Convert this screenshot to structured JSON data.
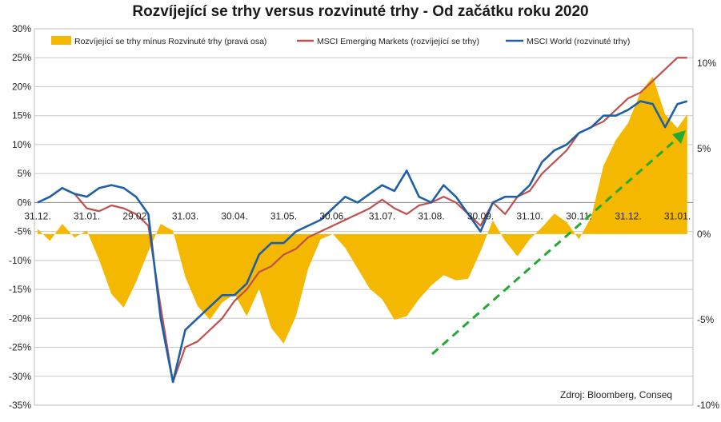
{
  "chart_data": {
    "type": "line",
    "title": "Rozvíjející se trhy versus rozvinuté trhy - Od začátku roku 2020",
    "source_note": "Zdroj: Bloomberg, Conseq",
    "xlabel": "",
    "ylabel": "",
    "x_tick_labels": [
      "31.12.",
      "31.01.",
      "29.02.",
      "31.03.",
      "30.04.",
      "31.05.",
      "30.06.",
      "31.07.",
      "31.08.",
      "30.09.",
      "31.10.",
      "30.11.",
      "31.12.",
      "31.01."
    ],
    "left_axis": {
      "ylim": [
        -35,
        30
      ],
      "tick_values": [
        30,
        25,
        20,
        15,
        10,
        5,
        0,
        -5,
        -10,
        -15,
        -20,
        -25,
        -30,
        -35
      ],
      "tick_labels": [
        "30%",
        "25%",
        "20%",
        "15%",
        "10%",
        "5%",
        "0%",
        "-5%",
        "-10%",
        "-15%",
        "-20%",
        "-25%",
        "-30%",
        "-35%"
      ]
    },
    "right_axis": {
      "ylim": [
        -10,
        12
      ],
      "tick_values": [
        10,
        5,
        0,
        -5,
        -10
      ],
      "tick_labels": [
        "10%",
        "5%",
        "0%",
        "-5%",
        "-10%"
      ]
    },
    "grid": true,
    "legend_position": "top",
    "series": [
      {
        "name": "Rozvíjející se trhy mínus Rozvinuté trhy (pravá osa)",
        "type": "area",
        "axis": "right",
        "color": "#f5b800",
        "x": [
          0,
          0.25,
          0.5,
          0.75,
          1,
          1.25,
          1.5,
          1.75,
          2,
          2.25,
          2.5,
          2.75,
          3,
          3.25,
          3.5,
          3.75,
          4,
          4.25,
          4.5,
          4.75,
          5,
          5.25,
          5.5,
          5.75,
          6,
          6.25,
          6.5,
          6.75,
          7,
          7.25,
          7.5,
          7.75,
          8,
          8.25,
          8.5,
          8.75,
          9,
          9.25,
          9.5,
          9.75,
          10,
          10.25,
          10.5,
          10.75,
          11,
          11.25,
          11.5,
          11.75,
          12,
          12.25,
          12.5,
          12.75,
          13,
          13.2
        ],
        "values": [
          0.3,
          -0.4,
          0.6,
          -0.2,
          0.2,
          -1.5,
          -3.5,
          -4.3,
          -2.8,
          -1.0,
          0.6,
          0.2,
          -2.5,
          -4.2,
          -5.0,
          -4.0,
          -3.5,
          -4.8,
          -3.2,
          -5.5,
          -6.4,
          -4.8,
          -2.0,
          -0.3,
          0.0,
          -0.8,
          -2.0,
          -3.2,
          -3.8,
          -5.0,
          -4.8,
          -3.8,
          -3.0,
          -2.4,
          -2.7,
          -2.6,
          -1.0,
          0.8,
          -0.4,
          -1.3,
          -0.3,
          0.4,
          1.2,
          0.7,
          -0.3,
          1.0,
          4.0,
          5.5,
          6.5,
          8.3,
          9.2,
          7.0,
          6.2,
          7.0
        ]
      },
      {
        "name": "MSCI Emerging Markets (rozvíjející se trhy)",
        "type": "line",
        "axis": "left",
        "color": "#c0504d",
        "x": [
          0,
          0.25,
          0.5,
          0.75,
          1,
          1.25,
          1.5,
          1.75,
          2,
          2.25,
          2.5,
          2.75,
          3,
          3.25,
          3.5,
          3.75,
          4,
          4.25,
          4.5,
          4.75,
          5,
          5.25,
          5.5,
          5.75,
          6,
          6.25,
          6.5,
          6.75,
          7,
          7.25,
          7.5,
          7.75,
          8,
          8.25,
          8.5,
          8.75,
          9,
          9.25,
          9.5,
          9.75,
          10,
          10.25,
          10.5,
          10.75,
          11,
          11.25,
          11.5,
          11.75,
          12,
          12.25,
          12.5,
          12.75,
          13,
          13.2
        ],
        "values": [
          0,
          1,
          2.5,
          1.5,
          -1,
          -1.5,
          -0.5,
          -1,
          -2,
          -4,
          -18,
          -31,
          -25,
          -24,
          -22,
          -20,
          -17,
          -15,
          -12,
          -11,
          -9,
          -8,
          -6,
          -5,
          -4,
          -3,
          -2,
          -1,
          0.5,
          -1,
          -2,
          -0.5,
          0,
          1,
          0,
          -2,
          -4,
          0,
          -2,
          1,
          2,
          5,
          7,
          9,
          12,
          13,
          14,
          16,
          18,
          19,
          21,
          23,
          25,
          25
        ]
      },
      {
        "name": "MSCI World (rozvinuté trhy)",
        "type": "line",
        "axis": "left",
        "color": "#1f5fa8",
        "x": [
          0,
          0.25,
          0.5,
          0.75,
          1,
          1.25,
          1.5,
          1.75,
          2,
          2.25,
          2.5,
          2.75,
          3,
          3.25,
          3.5,
          3.75,
          4,
          4.25,
          4.5,
          4.75,
          5,
          5.25,
          5.5,
          5.75,
          6,
          6.25,
          6.5,
          6.75,
          7,
          7.25,
          7.5,
          7.75,
          8,
          8.25,
          8.5,
          8.75,
          9,
          9.25,
          9.5,
          9.75,
          10,
          10.25,
          10.5,
          10.75,
          11,
          11.25,
          11.5,
          11.75,
          12,
          12.25,
          12.5,
          12.75,
          13,
          13.2
        ],
        "values": [
          0,
          1,
          2.5,
          1.5,
          1,
          2.5,
          3,
          2.5,
          1,
          -2,
          -20,
          -31,
          -22,
          -20,
          -18,
          -16,
          -16,
          -14,
          -9,
          -7,
          -7,
          -5,
          -4,
          -3,
          -1,
          1,
          0,
          1.5,
          3,
          2,
          5.5,
          1,
          0,
          3,
          1,
          -2,
          -5,
          0,
          1,
          1,
          3,
          7,
          9,
          10,
          12,
          13,
          15,
          15,
          16,
          17.5,
          17,
          13,
          17,
          17.5
        ]
      }
    ]
  }
}
